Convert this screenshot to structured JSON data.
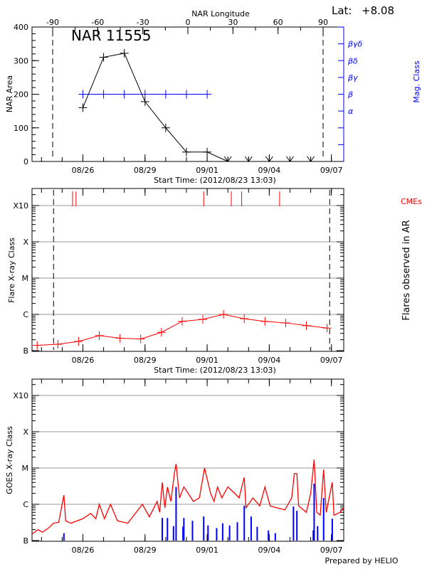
{
  "chart_data": [
    {
      "type": "line",
      "title": "NAR 11555",
      "top_right_label": "Lat:",
      "latitude": "+8.08",
      "xlabel": "Start Time: (2012/08/23 13:03)",
      "x_top_label": "NAR Longitude",
      "x_top_ticks": [
        "-90",
        "-60",
        "-30",
        "0",
        "30",
        "60",
        "90"
      ],
      "ylabel": "NAR Area",
      "ylim": [
        0,
        400
      ],
      "y_ticks": [
        "0",
        "100",
        "200",
        "300",
        "400"
      ],
      "y2label": "Mag. Class",
      "y2_ticks": [
        {
          "label": "α",
          "value": 150
        },
        {
          "label": "β",
          "value": 200
        },
        {
          "label": "βγ",
          "value": 250
        },
        {
          "label": "βδ",
          "value": 300
        },
        {
          "label": "βγδ",
          "value": 350
        }
      ],
      "x_ticks": [
        {
          "label": "08/26",
          "date": "2012-08-26T00:00"
        },
        {
          "label": "08/29",
          "date": "2012-08-29T00:00"
        },
        {
          "label": "09/01",
          "date": "2012-09-01T00:00"
        },
        {
          "label": "09/04",
          "date": "2012-09-04T00:00"
        },
        {
          "label": "09/07",
          "date": "2012-09-07T00:00"
        }
      ],
      "limb_longitudes": [
        -90,
        90
      ],
      "series": [
        {
          "color": "#000000",
          "x": [
            "2012-08-26T00:00",
            "2012-08-27T00:00",
            "2012-08-28T00:00",
            "2012-08-29T00:00",
            "2012-08-30T00:00",
            "2012-08-31T00:00",
            "2012-09-01T00:00",
            "2012-09-02T00:00",
            "2012-09-03T00:00",
            "2012-09-04T00:00",
            "2012-09-05T00:00",
            "2012-09-06T00:00"
          ],
          "values": [
            160,
            310,
            322,
            178,
            100,
            28,
            28,
            0,
            0,
            0,
            0,
            0
          ]
        },
        {
          "color": "#0000ff",
          "x": [
            "2012-08-26T00:00",
            "2012-08-27T00:00",
            "2012-08-28T00:00",
            "2012-08-29T00:00",
            "2012-08-30T00:00",
            "2012-08-31T00:00",
            "2012-09-01T00:00"
          ],
          "values": [
            "β",
            "β",
            "β",
            "β",
            "β",
            "β",
            "β"
          ]
        }
      ]
    },
    {
      "type": "line",
      "xlabel": "Start Time: (2012/08/23 13:03)",
      "ylabel": "Flare X-ray Class",
      "y2label": "Flares observed in AR",
      "cme_label": "CMEs",
      "y_scale": "log",
      "grid": true,
      "y_ticks": [
        {
          "label": "B",
          "value": 1e-07
        },
        {
          "label": "C",
          "value": 1e-06
        },
        {
          "label": "M",
          "value": 1e-05
        },
        {
          "label": "X",
          "value": 0.0001
        },
        {
          "label": "X10",
          "value": 0.001
        }
      ],
      "x_ticks": [
        {
          "label": "08/26",
          "date": "2012-08-26T00:00"
        },
        {
          "label": "08/29",
          "date": "2012-08-29T00:00"
        },
        {
          "label": "09/01",
          "date": "2012-09-01T00:00"
        },
        {
          "label": "09/04",
          "date": "2012-09-04T00:00"
        },
        {
          "label": "09/07",
          "date": "2012-09-07T00:00"
        }
      ],
      "limb_dates": [
        "2012-08-24T14:00",
        "2012-09-06T22:00"
      ],
      "series": [
        {
          "color": "#ff0000",
          "x": [
            "2012-08-23T19:00",
            "2012-08-24T19:00",
            "2012-08-25T19:00",
            "2012-08-26T19:00",
            "2012-08-27T19:00",
            "2012-08-28T19:00",
            "2012-08-29T19:00",
            "2012-08-30T19:00",
            "2012-08-31T19:00",
            "2012-09-01T19:00",
            "2012-09-02T19:00",
            "2012-09-03T19:00",
            "2012-09-04T19:00",
            "2012-09-05T19:00",
            "2012-09-06T19:00"
          ],
          "values": [
            1.4e-07,
            1.5e-07,
            1.8e-07,
            2.6e-07,
            2.2e-07,
            2.1e-07,
            3.2e-07,
            6.4e-07,
            7.3e-07,
            1e-06,
            7.6e-07,
            6.4e-07,
            5.8e-07,
            4.9e-07,
            4.2e-07
          ]
        }
      ],
      "cmes": {
        "color": "#ff0000",
        "dates": [
          "2012-08-25T12:00",
          "2012-08-25T16:00",
          "2012-08-31T20:00",
          "2012-09-02T04:00",
          "2012-09-02T16:00",
          "2012-09-04T12:00"
        ]
      }
    },
    {
      "type": "line",
      "ylabel": "GOES X-ray Class",
      "y_scale": "log",
      "grid": true,
      "credit": "Prepared by HELIO",
      "y_ticks": [
        {
          "label": "B",
          "value": 1e-07
        },
        {
          "label": "C",
          "value": 1e-06
        },
        {
          "label": "M",
          "value": 1e-05
        },
        {
          "label": "X",
          "value": 0.0001
        },
        {
          "label": "X10",
          "value": 0.001
        }
      ],
      "x_ticks": [
        {
          "label": "08/26",
          "date": "2012-08-26T00:00"
        },
        {
          "label": "08/29",
          "date": "2012-08-29T00:00"
        },
        {
          "label": "09/01",
          "date": "2012-09-01T00:00"
        },
        {
          "label": "09/04",
          "date": "2012-09-04T00:00"
        },
        {
          "label": "09/07",
          "date": "2012-09-07T00:00"
        }
      ],
      "series": [
        {
          "color": "#ff0000",
          "x": [
            "2012-08-23T13:00",
            "2012-08-23T20:00",
            "2012-08-24T01:00",
            "2012-08-24T08:00",
            "2012-08-24T14:00",
            "2012-08-24T20:00",
            "2012-08-25T02:00",
            "2012-08-25T04:00",
            "2012-08-25T10:00",
            "2012-08-26T00:00",
            "2012-08-26T09:00",
            "2012-08-26T15:00",
            "2012-08-26T19:00",
            "2012-08-27T01:00",
            "2012-08-27T08:00",
            "2012-08-27T16:00",
            "2012-08-28T04:00",
            "2012-08-28T21:00",
            "2012-08-29T05:00",
            "2012-08-29T14:00",
            "2012-08-29T17:00",
            "2012-08-29T20:00",
            "2012-08-29T23:00",
            "2012-08-30T02:00",
            "2012-08-30T06:00",
            "2012-08-30T10:00",
            "2012-08-30T12:00",
            "2012-08-30T16:00",
            "2012-08-30T21:00",
            "2012-08-31T02:00",
            "2012-08-31T08:00",
            "2012-08-31T15:00",
            "2012-08-31T21:00",
            "2012-09-01T00:00",
            "2012-09-01T04:00",
            "2012-09-01T08:00",
            "2012-09-01T12:00",
            "2012-09-01T17:00",
            "2012-09-02T00:00",
            "2012-09-02T08:00",
            "2012-09-02T13:00",
            "2012-09-02T19:00",
            "2012-09-02T21:00",
            "2012-09-03T05:00",
            "2012-09-03T13:00",
            "2012-09-03T19:00",
            "2012-09-04T01:00",
            "2012-09-04T09:00",
            "2012-09-04T18:00",
            "2012-09-05T02:00",
            "2012-09-05T05:00",
            "2012-09-05T08:00",
            "2012-09-05T10:00",
            "2012-09-05T19:00",
            "2012-09-06T00:00",
            "2012-09-06T04:00",
            "2012-09-06T07:00",
            "2012-09-06T11:00",
            "2012-09-06T15:00",
            "2012-09-06T18:00",
            "2012-09-07T01:00",
            "2012-09-07T03:00",
            "2012-09-07T10:00",
            "2012-09-07T14:00"
          ],
          "values": [
            1.5e-07,
            2e-07,
            1.7e-07,
            2.2e-07,
            3e-07,
            3.2e-07,
            1.8e-06,
            3.5e-07,
            3e-07,
            4e-07,
            5.6e-07,
            4e-07,
            1e-06,
            4e-07,
            1e-06,
            3.5e-07,
            3e-07,
            1e-06,
            4.5e-07,
            1.2e-06,
            6e-07,
            4e-06,
            8e-07,
            3e-06,
            1.2e-06,
            7e-06,
            1.3e-05,
            1.5e-06,
            3e-06,
            2e-06,
            1.2e-06,
            1.5e-06,
            1e-05,
            5e-06,
            2e-06,
            1.2e-06,
            3e-06,
            1.5e-06,
            3e-06,
            2e-06,
            1.5e-06,
            5.5e-06,
            8e-07,
            1.5e-06,
            9e-07,
            3e-06,
            9e-07,
            8e-07,
            7e-07,
            1.5e-06,
            7e-06,
            7e-06,
            9e-07,
            6e-07,
            2e-06,
            1.7e-05,
            6e-07,
            5e-07,
            9e-06,
            6e-07,
            4e-06,
            5e-07,
            6e-07,
            8e-07
          ]
        }
      ],
      "events": {
        "color": "#0000ff",
        "x": [
          "2012-08-25T02:00",
          "2012-08-29T20:00",
          "2012-08-30T02:00",
          "2012-08-30T09:00",
          "2012-08-30T12:00",
          "2012-08-30T20:00",
          "2012-08-30T21:00",
          "2012-08-31T07:00",
          "2012-08-31T20:00",
          "2012-09-01T01:00",
          "2012-09-01T11:00",
          "2012-09-01T18:00",
          "2012-09-02T02:00",
          "2012-09-02T11:00",
          "2012-09-02T19:00",
          "2012-09-03T03:00",
          "2012-09-03T10:00",
          "2012-09-03T23:00",
          "2012-09-04T07:00",
          "2012-09-05T04:00",
          "2012-09-05T08:00",
          "2012-09-06T03:00",
          "2012-09-06T04:00",
          "2012-09-06T08:00",
          "2012-09-06T15:00",
          "2012-09-07T01:00"
        ],
        "values": [
          1.6e-07,
          4.2e-07,
          4.2e-07,
          2.5e-07,
          3e-06,
          2.4e-07,
          4.2e-07,
          3.5e-07,
          4.6e-07,
          2.6e-07,
          2.2e-07,
          3e-07,
          2.6e-07,
          3.2e-07,
          9.1e-07,
          4.6e-07,
          2.4e-07,
          1.9e-07,
          1.6e-07,
          8.7e-07,
          6.6e-07,
          1.9e-07,
          3.7e-06,
          2.5e-07,
          1.5e-06,
          4e-07
        ]
      }
    }
  ]
}
